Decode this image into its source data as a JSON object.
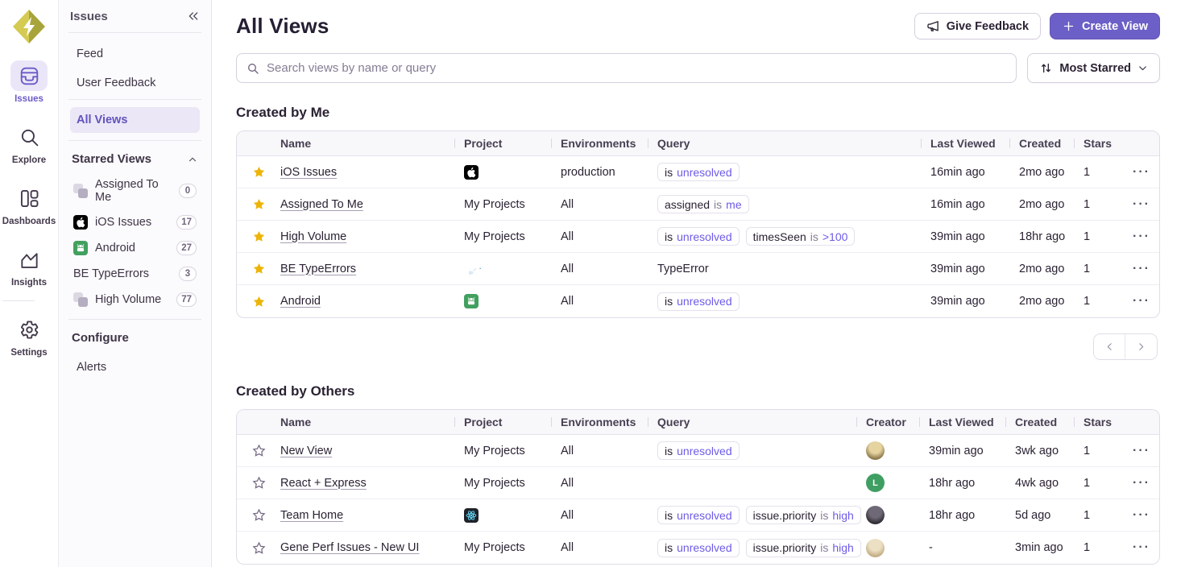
{
  "accent_color": "#6c5fc7",
  "star_color": "#edb407",
  "nav_rail": {
    "logo_icon": "sentry-logo",
    "items": [
      {
        "label": "Issues",
        "icon": "issues-icon",
        "active": true
      },
      {
        "label": "Explore",
        "icon": "search-icon",
        "active": false
      },
      {
        "label": "Dashboards",
        "icon": "dashboards-icon",
        "active": false
      },
      {
        "label": "Insights",
        "icon": "insights-icon",
        "active": false,
        "divider_after": true
      },
      {
        "label": "Settings",
        "icon": "settings-icon",
        "active": false
      }
    ]
  },
  "sidebar": {
    "title": "Issues",
    "collapse_icon": "double-chevron-left-icon",
    "top_items": [
      {
        "label": "Feed"
      },
      {
        "label": "User Feedback"
      }
    ],
    "all_views_item": {
      "label": "All Views",
      "active": true
    },
    "starred_section": {
      "label": "Starred Views",
      "collapse_icon": "chevron-up-icon"
    },
    "starred_items": [
      {
        "label": "Assigned To Me",
        "count": "0",
        "icon": "my-projects-icon"
      },
      {
        "label": "iOS Issues",
        "count": "17",
        "icon": "apple-icon"
      },
      {
        "label": "Android",
        "count": "27",
        "icon": "android-icon"
      },
      {
        "label": "BE TypeErrors",
        "count": "3",
        "icon": "python-stack-icon"
      },
      {
        "label": "High Volume",
        "count": "77",
        "icon": "my-projects-icon"
      }
    ],
    "configure_section": {
      "label": "Configure"
    },
    "configure_items": [
      {
        "label": "Alerts"
      }
    ]
  },
  "header": {
    "title": "All Views",
    "feedback_button": {
      "label": "Give Feedback",
      "icon": "megaphone-icon"
    },
    "create_button": {
      "label": "Create View",
      "icon": "plus-icon"
    }
  },
  "toolbar": {
    "search_placeholder": "Search views by name or query",
    "search_icon": "search-icon",
    "sort": {
      "label": "Most Starred",
      "icon": "sort-arrows-icon",
      "chevron": "chevron-down-icon"
    }
  },
  "created_by_me": {
    "title": "Created by Me",
    "columns": [
      "Name",
      "Project",
      "Environments",
      "Query",
      "Last Viewed",
      "Created",
      "Stars"
    ],
    "rows": [
      {
        "starred": true,
        "name": "iOS Issues",
        "project": {
          "kind": "icons",
          "icons": [
            "apple"
          ]
        },
        "environments": "production",
        "query": {
          "chips": [
            [
              [
                "is",
                "key"
              ],
              [
                "unresolved",
                "val"
              ]
            ]
          ]
        },
        "last_viewed": "16min ago",
        "created": "2mo ago",
        "stars": "1"
      },
      {
        "starred": true,
        "name": "Assigned To Me",
        "project": {
          "kind": "text",
          "text": "My Projects"
        },
        "environments": "All",
        "query": {
          "chips": [
            [
              [
                "assigned",
                "key"
              ],
              [
                "is",
                "op"
              ],
              [
                "me",
                "val"
              ]
            ]
          ]
        },
        "last_viewed": "16min ago",
        "created": "2mo ago",
        "stars": "1"
      },
      {
        "starred": true,
        "name": "High Volume",
        "project": {
          "kind": "text",
          "text": "My Projects"
        },
        "environments": "All",
        "query": {
          "chips": [
            [
              [
                "is",
                "key"
              ],
              [
                "unresolved",
                "val"
              ]
            ],
            [
              [
                "timesSeen",
                "key"
              ],
              [
                "is",
                "op"
              ],
              [
                ">100",
                "val"
              ]
            ]
          ]
        },
        "last_viewed": "39min ago",
        "created": "18hr ago",
        "stars": "1"
      },
      {
        "starred": true,
        "name": "BE TypeErrors",
        "project": {
          "kind": "icons",
          "icons": [
            "python",
            "python-alt"
          ]
        },
        "environments": "All",
        "query": {
          "plain": "TypeError"
        },
        "last_viewed": "39min ago",
        "created": "2mo ago",
        "stars": "1"
      },
      {
        "starred": true,
        "name": "Android",
        "project": {
          "kind": "icons",
          "icons": [
            "android"
          ]
        },
        "environments": "All",
        "query": {
          "chips": [
            [
              [
                "is",
                "key"
              ],
              [
                "unresolved",
                "val"
              ]
            ]
          ]
        },
        "last_viewed": "39min ago",
        "created": "2mo ago",
        "stars": "1"
      }
    ]
  },
  "pagination": {
    "prev_icon": "chevron-left-icon",
    "next_icon": "chevron-right-icon"
  },
  "created_by_others": {
    "title": "Created by Others",
    "columns": [
      "Name",
      "Project",
      "Environments",
      "Query",
      "Creator",
      "Last Viewed",
      "Created",
      "Stars"
    ],
    "rows": [
      {
        "starred": false,
        "name": "New View",
        "project": {
          "kind": "text",
          "text": "My Projects"
        },
        "environments": "All",
        "query": {
          "chips": [
            [
              [
                "is",
                "key"
              ],
              [
                "unresolved",
                "val"
              ]
            ]
          ]
        },
        "creator": {
          "kind": "photo",
          "bg1": "#e5d3a0",
          "bg2": "#8a7648"
        },
        "last_viewed": "39min ago",
        "created": "3wk ago",
        "stars": "1"
      },
      {
        "starred": false,
        "name": "React + Express",
        "project": {
          "kind": "text",
          "text": "My Projects"
        },
        "environments": "All",
        "query": {},
        "creator": {
          "kind": "initial",
          "initial": "L",
          "bg": "#3f9e62"
        },
        "last_viewed": "18hr ago",
        "created": "4wk ago",
        "stars": "1"
      },
      {
        "starred": false,
        "name": "Team Home",
        "project": {
          "kind": "icons",
          "icons": [
            "react"
          ]
        },
        "environments": "All",
        "query": {
          "chips": [
            [
              [
                "is",
                "key"
              ],
              [
                "unresolved",
                "val"
              ]
            ],
            [
              [
                "issue.priority",
                "key"
              ],
              [
                "is",
                "op"
              ],
              [
                "high",
                "val"
              ]
            ]
          ]
        },
        "creator": {
          "kind": "photo",
          "bg1": "#6f6876",
          "bg2": "#2e2b33"
        },
        "last_viewed": "18hr ago",
        "created": "5d ago",
        "stars": "1"
      },
      {
        "starred": false,
        "name": "Gene Perf Issues - New UI",
        "project": {
          "kind": "text",
          "text": "My Projects"
        },
        "environments": "All",
        "query": {
          "chips": [
            [
              [
                "is",
                "key"
              ],
              [
                "unresolved",
                "val"
              ]
            ],
            [
              [
                "issue.priority",
                "key"
              ],
              [
                "is",
                "op"
              ],
              [
                "high",
                "val"
              ]
            ]
          ]
        },
        "creator": {
          "kind": "photo",
          "bg1": "#ece0c4",
          "bg2": "#c2ac83"
        },
        "last_viewed": "-",
        "created": "3min ago",
        "stars": "1"
      }
    ]
  }
}
